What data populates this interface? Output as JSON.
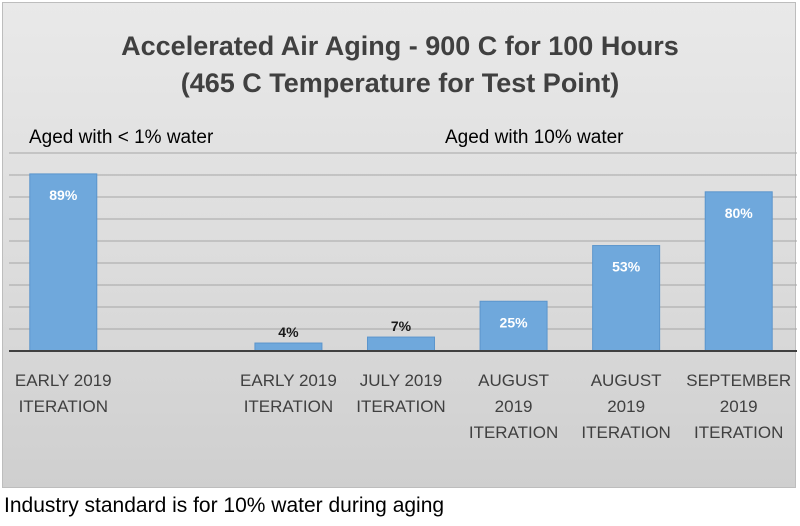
{
  "chart_data": {
    "type": "bar",
    "title": [
      "Accelerated Air Aging -  900 C for 100 Hours",
      "(465 C Temperature for Test Point)"
    ],
    "categories": [
      [
        "EARLY 2019",
        "ITERATION"
      ],
      [],
      [
        "EARLY 2019",
        "ITERATION"
      ],
      [
        "JULY 2019",
        "ITERATION"
      ],
      [
        "AUGUST",
        "2019",
        "ITERATION"
      ],
      [
        "AUGUST",
        "2019",
        "ITERATION"
      ],
      [
        "SEPTEMBER",
        "2019",
        "ITERATION"
      ]
    ],
    "values": [
      89,
      null,
      4,
      7,
      25,
      53,
      80
    ],
    "data_labels": [
      "89%",
      "",
      "4%",
      "7%",
      "25%",
      "53%",
      "80%"
    ],
    "ylim": [
      0,
      100
    ],
    "grid": true,
    "annotations": [
      "Aged with < 1% water",
      "Aged with 10% water"
    ],
    "colors": {
      "bar": "#6fa8dc",
      "bar_edge": "#5b95cc",
      "label_light": "#ffffff",
      "label_dark": "#1a1a1a"
    }
  },
  "footnote": "Industry standard is for 10% water during aging"
}
